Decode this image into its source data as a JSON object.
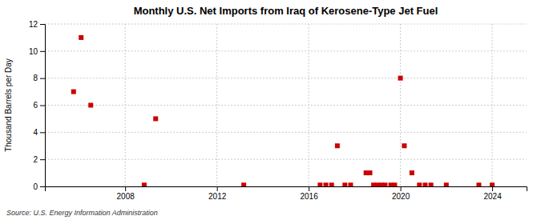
{
  "chart_data": {
    "type": "scatter",
    "title": "Monthly U.S. Net Imports from Iraq of Kerosene-Type Jet Fuel",
    "ylabel": "Thousand Barrels per Day",
    "source": "Source: U.S. Energy Information Administration",
    "color": "#cc0000",
    "marker": "square",
    "grid": true,
    "xlim": [
      2004.5,
      2025.5
    ],
    "ylim": [
      0,
      12
    ],
    "xticks": [
      2008,
      2012,
      2016,
      2020,
      2024
    ],
    "yticks": [
      0,
      2,
      4,
      6,
      8,
      10,
      12
    ],
    "x": [
      2005.75,
      2006.08,
      2006.5,
      2008.83,
      2009.33,
      2013.17,
      2016.5,
      2016.75,
      2017.0,
      2017.25,
      2017.58,
      2017.83,
      2018.5,
      2018.67,
      2018.83,
      2019.0,
      2019.17,
      2019.33,
      2019.58,
      2019.75,
      2020.0,
      2020.17,
      2020.5,
      2020.83,
      2021.08,
      2021.33,
      2022.0,
      2023.42,
      2024.0
    ],
    "values": [
      7.0,
      11.0,
      6.0,
      0.1,
      5.0,
      0.1,
      0.1,
      0.1,
      0.1,
      3.0,
      0.1,
      0.1,
      1.0,
      1.0,
      0.1,
      0.1,
      0.1,
      0.1,
      0.1,
      0.1,
      8.0,
      3.0,
      1.0,
      0.1,
      0.1,
      0.1,
      0.1,
      0.1,
      0.1
    ]
  }
}
